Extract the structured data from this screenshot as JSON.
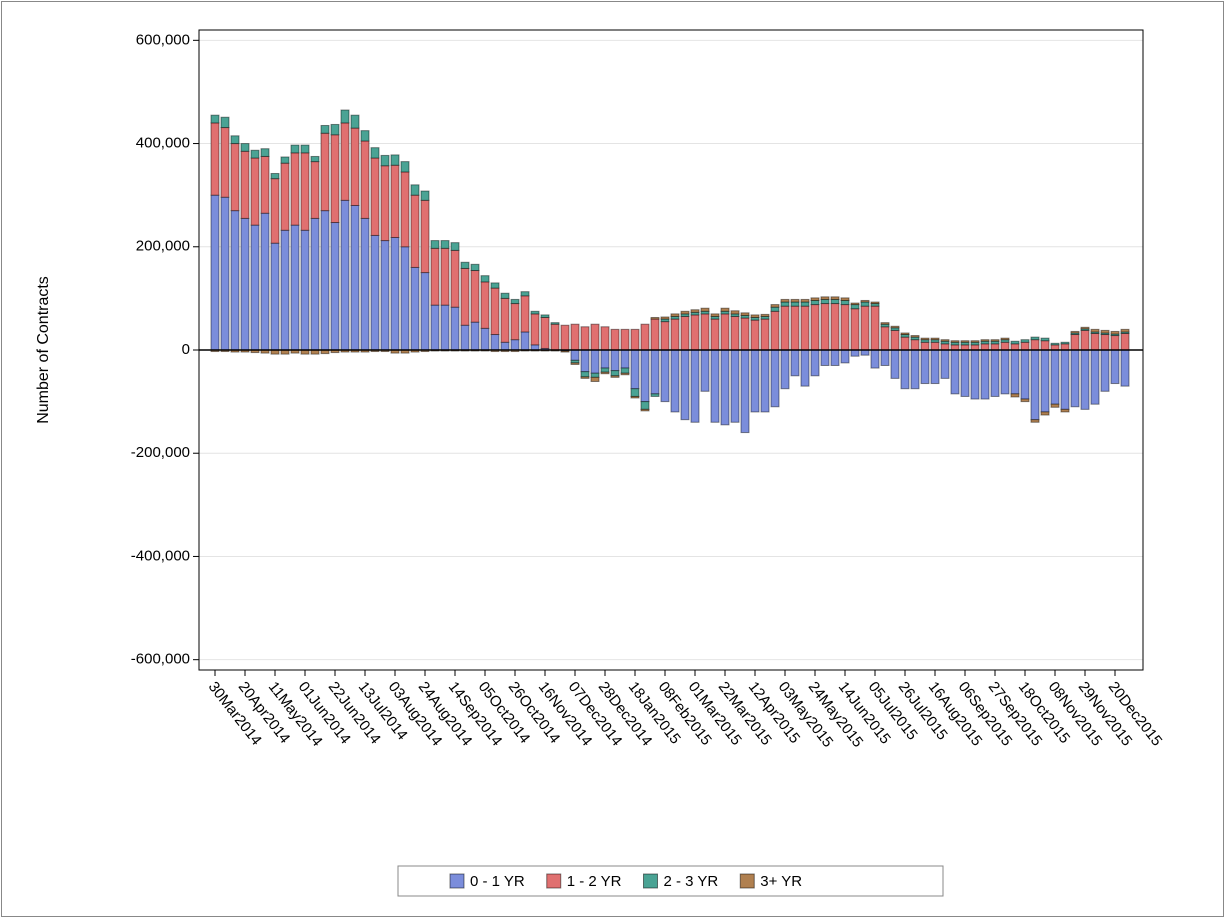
{
  "chart_data": {
    "type": "stacked-bar",
    "y_label": "Number of Contracts",
    "categories": [
      "30Mar2014",
      null,
      null,
      "20Apr2014",
      null,
      null,
      "11May2014",
      null,
      null,
      "01Jun2014",
      null,
      null,
      "22Jun2014",
      null,
      null,
      "13Jul2014",
      null,
      null,
      "03Aug2014",
      null,
      null,
      "24Aug2014",
      null,
      null,
      "14Sep2014",
      null,
      null,
      "05Oct2014",
      null,
      null,
      "26Oct2014",
      null,
      null,
      "16Nov2014",
      null,
      null,
      "07Dec2014",
      null,
      null,
      "28Dec2014",
      null,
      null,
      "18Jan2015",
      null,
      null,
      "08Feb2015",
      null,
      null,
      "01Mar2015",
      null,
      null,
      "22Mar2015",
      null,
      null,
      "12Apr2015",
      null,
      null,
      "03May2015",
      null,
      null,
      "24May2015",
      null,
      null,
      "14Jun2015",
      null,
      null,
      "05Jul2015",
      null,
      null,
      "26Jul2015",
      null,
      null,
      "16Aug2015",
      null,
      null,
      "06Sep2015",
      null,
      null,
      "27Sep2015",
      null,
      null,
      "18Oct2015",
      null,
      null,
      "08Nov2015",
      null,
      null,
      "29Nov2015",
      null,
      null,
      "20Dec2015",
      null
    ],
    "series": [
      {
        "name": "0 - 1 YR",
        "color": "#7b8ddb",
        "values": [
          300000,
          296000,
          270000,
          255000,
          242000,
          265000,
          207000,
          232000,
          242000,
          232000,
          255000,
          270000,
          247000,
          290000,
          280000,
          255000,
          222000,
          212000,
          218000,
          200000,
          160000,
          150000,
          87000,
          87000,
          83000,
          48000,
          54000,
          42000,
          30000,
          15000,
          20000,
          35000,
          10000,
          3000,
          0,
          -2000,
          -20000,
          -42000,
          -45000,
          -35000,
          -40000,
          -35000,
          -75000,
          -100000,
          -85000,
          -100000,
          -120000,
          -135000,
          -140000,
          -80000,
          -140000,
          -145000,
          -140000,
          -160000,
          -120000,
          -120000,
          -110000,
          -75000,
          -50000,
          -70000,
          -50000,
          -30000,
          -30000,
          -25000,
          -12000,
          -10000,
          -35000,
          -30000,
          -55000,
          -75000,
          -75000,
          -65000,
          -65000,
          -55000,
          -85000,
          -90000,
          -95000,
          -95000,
          -90000,
          -85000,
          -85000,
          -95000,
          -135000,
          -120000,
          -105000,
          -115000,
          -110000,
          -115000,
          -105000,
          -80000,
          -65000,
          -70000
        ]
      },
      {
        "name": "1 - 2 YR",
        "color": "#e07070",
        "values": [
          140000,
          135000,
          130000,
          130000,
          130000,
          110000,
          125000,
          130000,
          140000,
          150000,
          110000,
          150000,
          170000,
          150000,
          150000,
          150000,
          150000,
          145000,
          140000,
          145000,
          140000,
          140000,
          110000,
          110000,
          110000,
          110000,
          100000,
          90000,
          90000,
          85000,
          70000,
          70000,
          60000,
          60000,
          50000,
          48000,
          50000,
          45000,
          50000,
          45000,
          40000,
          40000,
          40000,
          50000,
          60000,
          55000,
          60000,
          65000,
          68000,
          70000,
          60000,
          70000,
          65000,
          62000,
          58000,
          60000,
          75000,
          85000,
          85000,
          85000,
          88000,
          90000,
          90000,
          88000,
          80000,
          85000,
          85000,
          45000,
          38000,
          25000,
          20000,
          15000,
          15000,
          12000,
          10000,
          10000,
          10000,
          12000,
          12000,
          15000,
          12000,
          15000,
          20000,
          18000,
          10000,
          12000,
          30000,
          38000,
          32000,
          30000,
          28000,
          32000
        ]
      },
      {
        "name": "2 - 3 YR",
        "color": "#4aa394",
        "values": [
          15000,
          20000,
          15000,
          15000,
          15000,
          15000,
          10000,
          12000,
          15000,
          15000,
          10000,
          15000,
          20000,
          25000,
          25000,
          20000,
          20000,
          20000,
          20000,
          20000,
          20000,
          18000,
          15000,
          15000,
          15000,
          12000,
          12000,
          12000,
          10000,
          10000,
          8000,
          8000,
          5000,
          5000,
          3000,
          0,
          -5000,
          -10000,
          -8000,
          -8000,
          -10000,
          -10000,
          -15000,
          -15000,
          -5000,
          5000,
          5000,
          5000,
          5000,
          5000,
          5000,
          5000,
          5000,
          5000,
          5000,
          5000,
          8000,
          8000,
          8000,
          8000,
          8000,
          8000,
          8000,
          8000,
          8000,
          8000,
          5000,
          5000,
          5000,
          5000,
          5000,
          5000,
          5000,
          5000,
          5000,
          5000,
          5000,
          5000,
          5000,
          5000,
          5000,
          5000,
          5000,
          5000,
          3000,
          3000,
          3000,
          3000,
          3000,
          3000,
          3000,
          3000
        ]
      },
      {
        "name": "3+ YR",
        "color": "#b08050",
        "values": [
          -3000,
          -3000,
          -4000,
          -4000,
          -5000,
          -6000,
          -8000,
          -8000,
          -6000,
          -8000,
          -8000,
          -7000,
          -5000,
          -4000,
          -4000,
          -4000,
          -3000,
          -3000,
          -6000,
          -6000,
          -4000,
          -3000,
          -2000,
          -2000,
          -2000,
          -2000,
          -2000,
          -2000,
          -3000,
          -3000,
          -3000,
          -2000,
          -2000,
          -2000,
          -2000,
          -2000,
          -3000,
          -3000,
          -8000,
          -3000,
          -3000,
          -3000,
          -3000,
          -3000,
          3000,
          4000,
          5000,
          5000,
          5000,
          6000,
          5000,
          6000,
          6000,
          5000,
          5000,
          4000,
          5000,
          5000,
          5000,
          5000,
          5000,
          5000,
          5000,
          5000,
          3000,
          3000,
          3000,
          3000,
          3000,
          3000,
          3000,
          3000,
          3000,
          3000,
          3000,
          3000,
          3000,
          3000,
          3000,
          3000,
          -6000,
          -5000,
          -5000,
          -6000,
          -6000,
          -5000,
          3000,
          3000,
          5000,
          5000,
          5000,
          5000
        ]
      }
    ],
    "ylim": [
      -620000,
      620000
    ],
    "yticks": [
      {
        "value": -600000,
        "label": "-600,000"
      },
      {
        "value": -400000,
        "label": "-400,000"
      },
      {
        "value": -200000,
        "label": "-200,000"
      },
      0,
      {
        "value": 200000,
        "label": "200,000"
      },
      {
        "value": 400000,
        "label": "400,000"
      },
      {
        "value": 600000,
        "label": "600,000"
      }
    ],
    "grid": true
  }
}
